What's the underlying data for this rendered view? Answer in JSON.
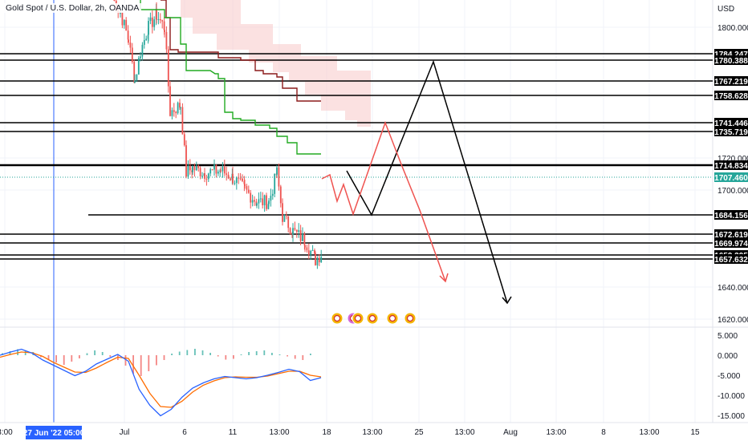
{
  "header": {
    "title": "Gold Spot / U.S. Dollar, 2h, OANDA"
  },
  "price_axis": {
    "currency": "USD",
    "tick_labels": [
      "1800.000",
      "1720.000",
      "1700.000",
      "1660.000",
      "1640.000",
      "1620.000"
    ]
  },
  "time_axis": {
    "labels": [
      "3:00",
      "Jul",
      "6",
      "11",
      "13:00",
      "18",
      "13:00",
      "25",
      "13:00",
      "Aug",
      "13:00",
      "8",
      "13:00",
      "15"
    ],
    "cursor_label": "27 Jun '22  05:00"
  },
  "price_levels": [
    "1784.247",
    "1780.388",
    "1767.219",
    "1758.628",
    "1741.446",
    "1735.719",
    "1714.834",
    "1684.156",
    "1672.619",
    "1669.974",
    "1659.395",
    "1657.632"
  ],
  "current_price": "1707.460",
  "macd_axis": {
    "tick_labels": [
      "5.000",
      "0.000",
      "-5.000",
      "-10.000",
      "-15.000"
    ]
  },
  "colors": {
    "up": "#26a69a",
    "down": "#ef5350",
    "current_price": "#26a69a",
    "cloud": "#f7c9c9",
    "kijun": "#8b1a1a",
    "tenkan": "#22aa22",
    "macd_line": "#2962ff",
    "signal_line": "#ff6d00",
    "projection_black": "#000000",
    "projection_red": "#ef5350",
    "crosshair": "#2962ff"
  },
  "chart_data": {
    "type": "line",
    "title": "Gold Spot / U.S. Dollar, 2h, OANDA",
    "y_unit": "USD",
    "ylim": [
      1605,
      1820
    ],
    "grid": true,
    "horizontal_levels": [
      1784.247,
      1780.388,
      1767.219,
      1758.628,
      1741.446,
      1735.719,
      1714.834,
      1684.156,
      1672.619,
      1669.974,
      1659.395,
      1657.632
    ],
    "current_price": 1707.46,
    "price_series": {
      "x": [
        "Jun 30",
        "Jul 1",
        "Jul 1",
        "Jul 5",
        "Jul 6",
        "Jul 6",
        "Jul 7",
        "Jul 8",
        "Jul 11",
        "Jul 12",
        "Jul 13",
        "Jul 13",
        "Jul 14",
        "Jul 15"
      ],
      "close": [
        1820,
        1815,
        1805,
        1800,
        1770,
        1764,
        1740,
        1742,
        1736,
        1733,
        1728,
        1740,
        1712,
        1707
      ]
    },
    "projection_black": [
      {
        "x": "Jul 19",
        "y": 1714
      },
      {
        "x": "Jul 20",
        "y": 1684
      },
      {
        "x": "Jul 25 13:00",
        "y": 1780
      },
      {
        "x": "Jul 28 13:00",
        "y": 1624
      }
    ],
    "projection_red": [
      {
        "x": "Jul 15",
        "y": 1707
      },
      {
        "x": "Jul 19",
        "y": 1686
      },
      {
        "x": "Jul 20 13:00",
        "y": 1741
      },
      {
        "x": "Jul 24 13:00",
        "y": 1640
      }
    ],
    "macd": {
      "ylim": [
        -16,
        7
      ],
      "histogram": [
        0.5,
        1,
        1.5,
        1.2,
        0.8,
        -0.5,
        -1.2,
        -1.8,
        -2.4,
        -1.6,
        -0.8,
        0.5,
        1.2,
        0.8,
        -0.4,
        -1.2,
        -2.6,
        -4.6,
        -5.2,
        -4,
        -2.5,
        -1.2,
        0.4,
        0.9,
        1.3,
        1.6,
        1.2,
        0.6,
        -0.3,
        -1.1,
        -0.9,
        0.2,
        0.8,
        1.0,
        1.2,
        0.6,
        0.2,
        -0.3,
        -0.9,
        -1.2,
        0.4
      ],
      "macd_line": [
        0,
        0.8,
        1.5,
        0.5,
        -1.2,
        -2.5,
        -3.8,
        -5.1,
        -4.0,
        -2.2,
        -1.0,
        0.2,
        -1.5,
        -8.5,
        -12.5,
        -15.1,
        -13.5,
        -10.5,
        -8.2,
        -6.9,
        -5.9,
        -5.3,
        -5.6,
        -5.9,
        -5.6,
        -5.0,
        -4.3,
        -3.5,
        -4.1,
        -6.3,
        -5.6
      ],
      "signal_line": [
        -0.5,
        0.2,
        0.8,
        0.6,
        -0.3,
        -1.8,
        -3.0,
        -4.2,
        -4.3,
        -3.2,
        -1.8,
        -0.5,
        -0.8,
        -5.0,
        -9.5,
        -12.8,
        -13.0,
        -11.5,
        -9.2,
        -7.5,
        -6.4,
        -5.6,
        -5.4,
        -5.5,
        -5.5,
        -5.2,
        -4.6,
        -4.0,
        -4.0,
        -5.0,
        -5.4
      ]
    }
  }
}
